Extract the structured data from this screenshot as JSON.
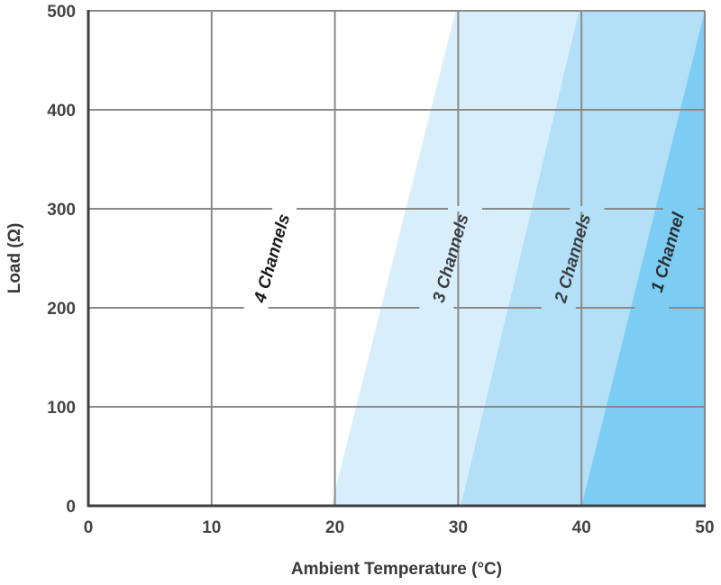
{
  "chart_data": {
    "type": "area",
    "xlabel": "Ambient Temperature (°C)",
    "ylabel": "Load (Ω)",
    "xlim": [
      0,
      50
    ],
    "ylim": [
      0,
      500
    ],
    "x_ticks": [
      "0",
      "10",
      "20",
      "30",
      "40",
      "50"
    ],
    "y_ticks": [
      "0",
      "100",
      "200",
      "300",
      "400",
      "500"
    ],
    "grid": true,
    "colors": {
      "band_3_channels": "#d9eefb",
      "band_2_channels": "#b3dff7",
      "band_1_channel": "#7cccf3",
      "grid": "#8a8a8a",
      "axis": "#3f3f3f"
    },
    "boundaries": [
      {
        "points": [
          {
            "x": 19.7,
            "y": 0
          },
          {
            "x": 29.8,
            "y": 500
          }
        ]
      },
      {
        "points": [
          {
            "x": 30.2,
            "y": 0
          },
          {
            "x": 39.8,
            "y": 500
          }
        ]
      },
      {
        "points": [
          {
            "x": 40.0,
            "y": 0
          },
          {
            "x": 50.0,
            "y": 500
          }
        ]
      }
    ],
    "region_labels": [
      {
        "text": "4 Channels",
        "x": 14.9,
        "y": 250,
        "color": "#1a1a1a"
      },
      {
        "text": "3 Channels",
        "x": 29.4,
        "y": 250,
        "color": "#3a3f44"
      },
      {
        "text": "2 Channels",
        "x": 39.3,
        "y": 250,
        "color": "#3a3f44"
      },
      {
        "text": "1 Channel",
        "x": 47.0,
        "y": 256,
        "color": "#2a2f33"
      }
    ]
  }
}
